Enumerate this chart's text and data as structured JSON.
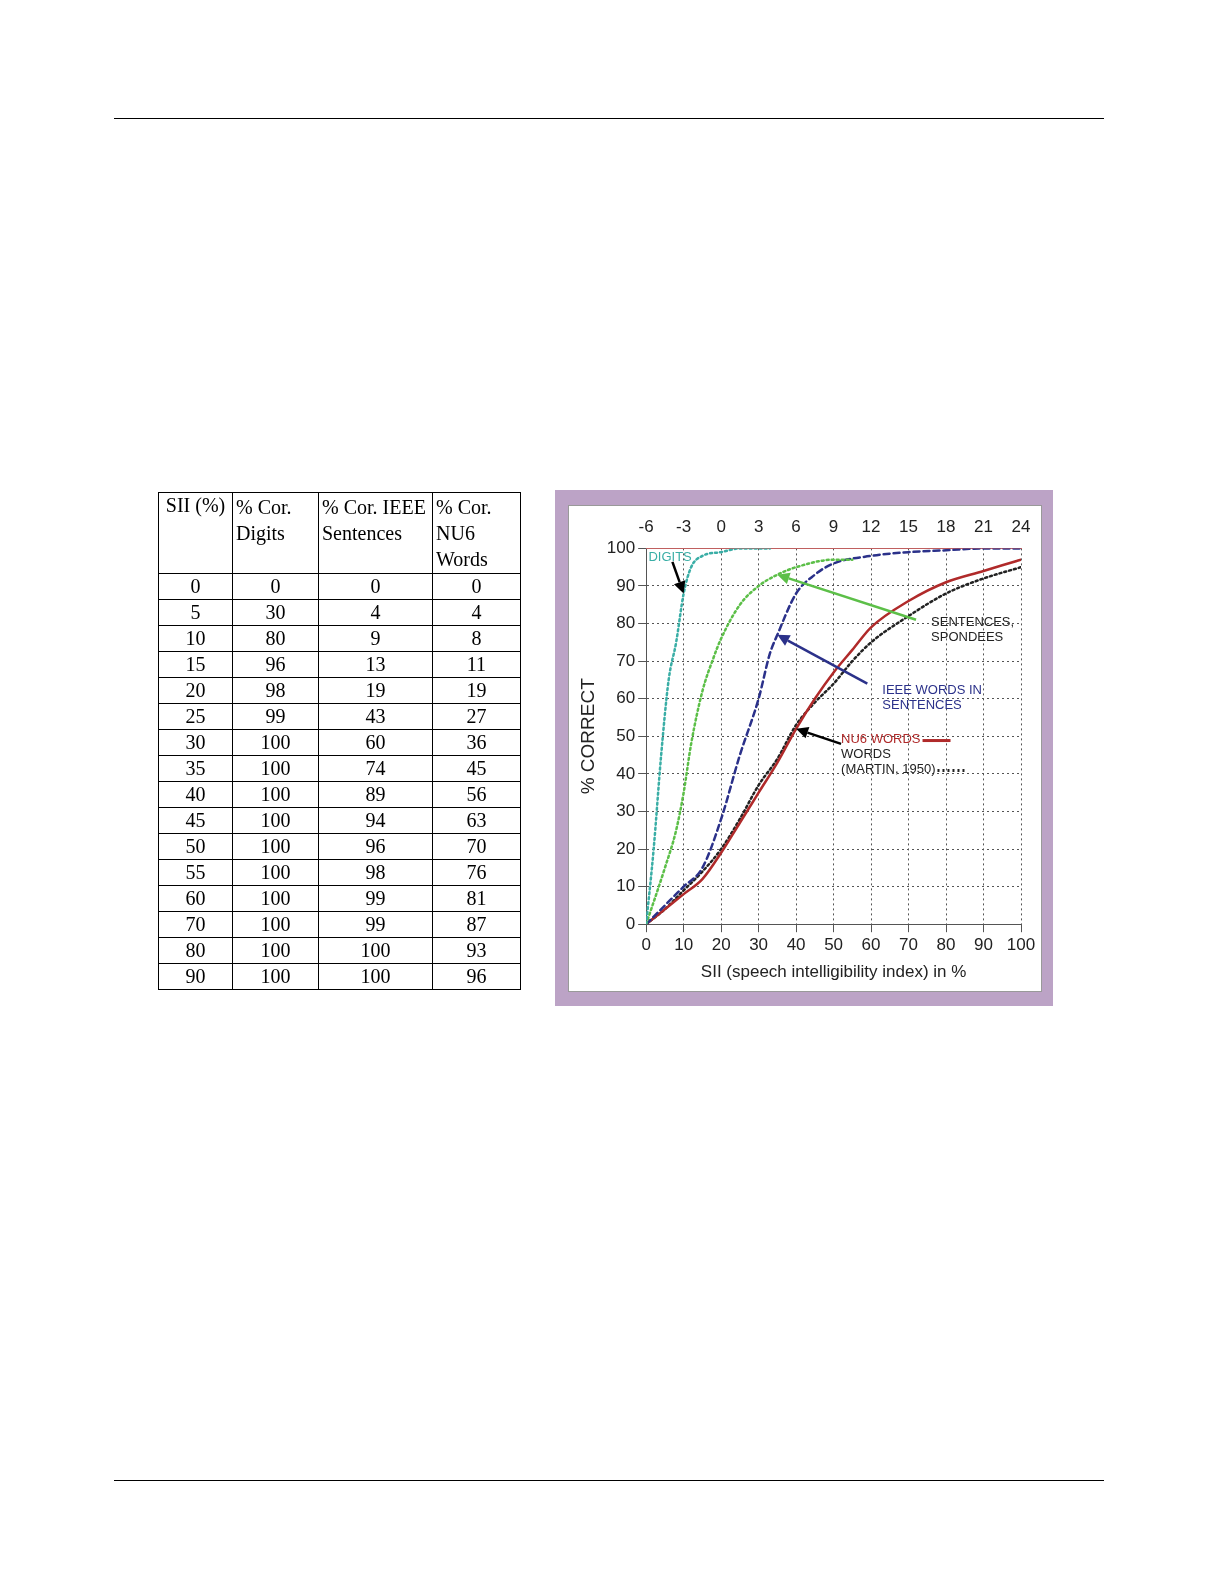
{
  "chart_data": [
    {
      "type": "heatmap",
      "data_labels": true,
      "ylabel": "SII (%)",
      "categories": [
        "% Cor. Digits",
        "% Cor. IEEE Sentences",
        "% Cor. NU6 Words"
      ],
      "y_categories": [
        "0",
        "5",
        "10",
        "15",
        "20",
        "25",
        "30",
        "35",
        "40",
        "45",
        "50",
        "55",
        "60",
        "70",
        "80",
        "90"
      ],
      "cells": [
        [
          0,
          0,
          0
        ],
        [
          30,
          4,
          4
        ],
        [
          80,
          9,
          8
        ],
        [
          96,
          13,
          11
        ],
        [
          98,
          19,
          19
        ],
        [
          99,
          43,
          27
        ],
        [
          100,
          60,
          36
        ],
        [
          100,
          74,
          45
        ],
        [
          100,
          89,
          56
        ],
        [
          100,
          94,
          63
        ],
        [
          100,
          96,
          70
        ],
        [
          100,
          98,
          76
        ],
        [
          100,
          99,
          81
        ],
        [
          100,
          99,
          87
        ],
        [
          100,
          100,
          93
        ],
        [
          100,
          100,
          96
        ]
      ]
    },
    {
      "type": "line",
      "xlabel": "SII (speech intelligibility index) in %",
      "ylabel": "% CORRECT",
      "xlim": [
        0,
        100
      ],
      "xticks": [
        0,
        10,
        20,
        30,
        40,
        50,
        60,
        70,
        80,
        90,
        100
      ],
      "x2lim": [
        -6,
        24
      ],
      "x2ticks": [
        -6,
        -3,
        0,
        3,
        6,
        9,
        12,
        15,
        18,
        21,
        24
      ],
      "ylim": [
        0,
        100
      ],
      "yticks": [
        0,
        10,
        20,
        30,
        40,
        50,
        60,
        70,
        80,
        90,
        100
      ],
      "grid": true,
      "marker": "none",
      "series": [
        {
          "name": "DIGITS",
          "color": "#3aaea6",
          "line_style": "dotted",
          "x": [
            0,
            2,
            4,
            6,
            8,
            10,
            12,
            15,
            20,
            25,
            33
          ],
          "values": [
            0,
            20,
            45,
            65,
            75,
            88,
            95,
            98,
            99,
            100,
            100
          ]
        },
        {
          "name": "SENTENCES, SPONDEES",
          "color": "#5cbf48",
          "line_style": "dotted",
          "x": [
            0,
            5,
            8,
            10,
            12,
            15,
            18,
            20,
            25,
            30,
            35,
            40,
            50,
            55
          ],
          "values": [
            0,
            15,
            25,
            35,
            48,
            62,
            71,
            76,
            85,
            90,
            93,
            95,
            97,
            97
          ]
        },
        {
          "name": "IEEE WORDS IN SENTENCES",
          "color": "#2b318a",
          "line_style": "dashed",
          "x": [
            0,
            5,
            10,
            15,
            20,
            25,
            30,
            33,
            35,
            40,
            45,
            50,
            60,
            70,
            80,
            90,
            100
          ],
          "values": [
            0,
            5,
            10,
            15,
            28,
            45,
            60,
            72,
            77,
            88,
            93,
            96,
            98,
            99,
            99.5,
            100,
            100
          ]
        },
        {
          "name": "NU6 WORDS",
          "color": "#b02a2a",
          "line_style": "solid",
          "x": [
            0,
            5,
            10,
            15,
            20,
            25,
            30,
            35,
            40,
            45,
            50,
            55,
            60,
            70,
            80,
            90,
            100
          ],
          "values": [
            0,
            4,
            8,
            12,
            19,
            27,
            35,
            43,
            52,
            60,
            67,
            73,
            79,
            86,
            91,
            94,
            97
          ]
        },
        {
          "name": "WORDS (MARTIN, 1950)",
          "color": "#222222",
          "line_style": "dotted",
          "x": [
            0,
            5,
            10,
            15,
            20,
            25,
            30,
            35,
            40,
            45,
            50,
            55,
            60,
            70,
            80,
            90,
            100
          ],
          "values": [
            0,
            4,
            9,
            14,
            20,
            28,
            37,
            44,
            53,
            59,
            64,
            70,
            75,
            82,
            88,
            92,
            95
          ]
        }
      ]
    }
  ]
}
